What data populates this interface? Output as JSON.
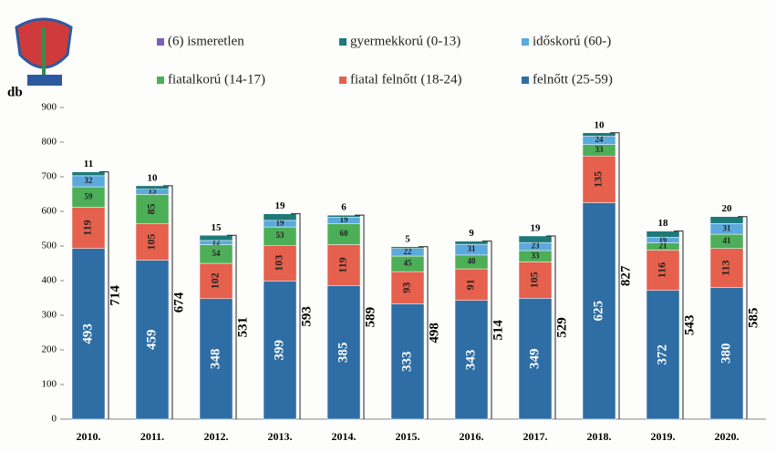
{
  "chart_data": {
    "type": "stacked_bar",
    "y_label": "db",
    "categories": [
      "2010.",
      "2011.",
      "2012.",
      "2013.",
      "2014.",
      "2015.",
      "2016.",
      "2017.",
      "2018.",
      "2019.",
      "2020."
    ],
    "series": [
      {
        "name": "felnőtt (25-59)",
        "color": "#2f6ea5",
        "values": [
          493,
          459,
          348,
          399,
          385,
          333,
          343,
          349,
          625,
          372,
          380
        ]
      },
      {
        "name": "fiatal felnőtt (18-24)",
        "color": "#e5604d",
        "values": [
          119,
          105,
          102,
          103,
          119,
          93,
          91,
          105,
          135,
          116,
          113
        ]
      },
      {
        "name": "fiatalkorú (14-17)",
        "color": "#4cae57",
        "values": [
          59,
          85,
          54,
          53,
          60,
          45,
          40,
          33,
          33,
          21,
          41
        ]
      },
      {
        "name": "időskorú (60-)",
        "color": "#5ba9dd",
        "values": [
          32,
          15,
          12,
          19,
          19,
          22,
          31,
          23,
          24,
          16,
          31
        ]
      },
      {
        "name": "gyermekkorú (0-13)",
        "color": "#1d7a78",
        "values": [
          11,
          10,
          15,
          19,
          6,
          5,
          9,
          19,
          10,
          18,
          20
        ]
      },
      {
        "name": "(6) ismeretlen",
        "color": "#7a5fb8",
        "values": [
          null,
          null,
          null,
          null,
          null,
          null,
          null,
          null,
          null,
          null,
          null
        ]
      }
    ],
    "totals": [
      714,
      674,
      531,
      593,
      589,
      498,
      514,
      529,
      827,
      543,
      585
    ],
    "ylim": [
      0,
      900
    ],
    "yticks": [
      0,
      100,
      200,
      300,
      400,
      500,
      600,
      700,
      800,
      900
    ],
    "grid": false
  }
}
